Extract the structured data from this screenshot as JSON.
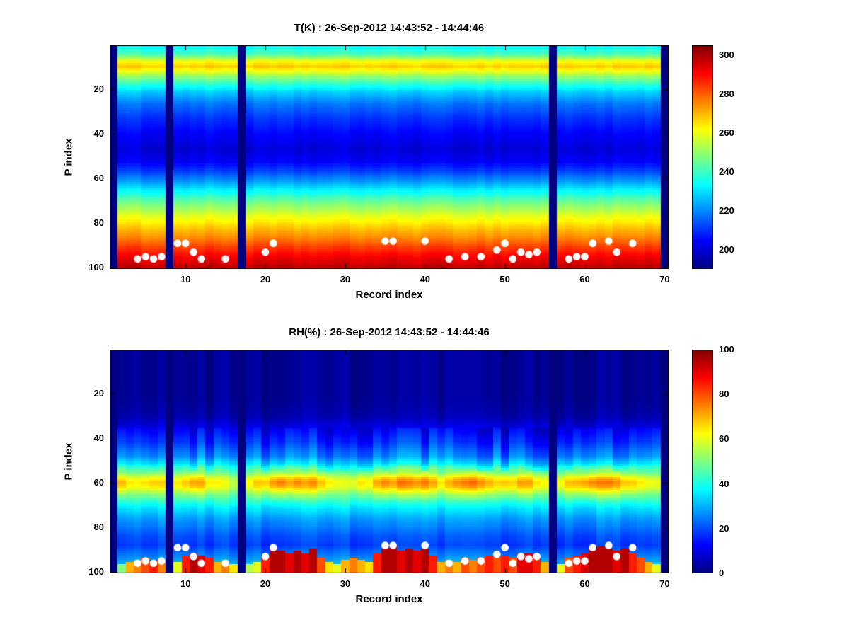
{
  "figure_bg": "#ffffff",
  "marker_color": "#ffffff",
  "chart_data": [
    {
      "type": "heatmap",
      "title": "T(K) : 26-Sep-2012 14:43:52 - 14:44:46",
      "x": {
        "label": "Record index",
        "min": 1,
        "max": 70,
        "ticks": [
          10,
          20,
          30,
          40,
          50,
          60,
          70
        ]
      },
      "y": {
        "label": "P index",
        "min": 1,
        "max": 100,
        "ticks": [
          20,
          40,
          60,
          80,
          100
        ],
        "direction": "down"
      },
      "colormap": "jet",
      "grid": false,
      "value_range": [
        190,
        305
      ],
      "colorbar_ticks": [
        200,
        220,
        240,
        260,
        280,
        300
      ],
      "profile_p_value": [
        [
          1,
          233
        ],
        [
          4,
          240
        ],
        [
          6,
          250
        ],
        [
          8,
          262
        ],
        [
          10,
          267
        ],
        [
          12,
          260
        ],
        [
          15,
          248
        ],
        [
          18,
          237
        ],
        [
          22,
          226
        ],
        [
          27,
          217
        ],
        [
          33,
          210
        ],
        [
          40,
          204
        ],
        [
          47,
          200
        ],
        [
          53,
          204
        ],
        [
          58,
          214
        ],
        [
          63,
          226
        ],
        [
          68,
          239
        ],
        [
          73,
          251
        ],
        [
          77,
          259
        ],
        [
          81,
          266
        ],
        [
          85,
          273
        ],
        [
          89,
          280
        ],
        [
          93,
          288
        ],
        [
          97,
          294
        ],
        [
          100,
          299
        ]
      ],
      "gap_records": [
        1,
        8,
        17,
        56,
        70
      ],
      "column_noise_amp": 1.6,
      "marker_color": "#ffffff",
      "markers_record_p": [
        [
          4,
          96
        ],
        [
          5,
          95
        ],
        [
          6,
          96
        ],
        [
          7,
          95
        ],
        [
          9,
          89
        ],
        [
          10,
          89
        ],
        [
          11,
          93
        ],
        [
          12,
          96
        ],
        [
          15,
          96
        ],
        [
          20,
          93
        ],
        [
          21,
          89
        ],
        [
          35,
          88
        ],
        [
          36,
          88
        ],
        [
          40,
          88
        ],
        [
          43,
          96
        ],
        [
          45,
          95
        ],
        [
          47,
          95
        ],
        [
          49,
          92
        ],
        [
          50,
          89
        ],
        [
          51,
          96
        ],
        [
          52,
          93
        ],
        [
          53,
          94
        ],
        [
          54,
          93
        ],
        [
          58,
          96
        ],
        [
          59,
          95
        ],
        [
          60,
          95
        ],
        [
          61,
          89
        ],
        [
          63,
          88
        ],
        [
          64,
          93
        ],
        [
          66,
          89
        ]
      ]
    },
    {
      "type": "heatmap",
      "title": "RH(%) : 26-Sep-2012 14:43:52 - 14:44:46",
      "x": {
        "label": "Record index",
        "min": 1,
        "max": 70,
        "ticks": [
          10,
          20,
          30,
          40,
          50,
          60,
          70
        ]
      },
      "y": {
        "label": "P index",
        "min": 1,
        "max": 100,
        "ticks": [
          20,
          40,
          60,
          80,
          100
        ],
        "direction": "down"
      },
      "colormap": "jet",
      "grid": false,
      "value_range": [
        0,
        100
      ],
      "colorbar_ticks": [
        0,
        20,
        40,
        60,
        80,
        100
      ],
      "profile_p_value": [
        [
          1,
          2
        ],
        [
          22,
          2
        ],
        [
          30,
          4
        ],
        [
          36,
          10
        ],
        [
          42,
          16
        ],
        [
          48,
          24
        ],
        [
          52,
          34
        ],
        [
          55,
          46
        ],
        [
          58,
          58
        ],
        [
          60,
          62
        ],
        [
          62,
          60
        ],
        [
          65,
          50
        ],
        [
          68,
          42
        ],
        [
          72,
          34
        ],
        [
          76,
          28
        ],
        [
          80,
          24
        ],
        [
          84,
          20
        ],
        [
          88,
          18
        ],
        [
          92,
          24
        ],
        [
          96,
          30
        ],
        [
          100,
          32
        ]
      ],
      "gap_records": [
        1,
        8,
        17,
        56,
        70
      ],
      "column_noise_amp": 2.5,
      "band_center_p": 60,
      "band_halfwidth_p": 9,
      "band_mod_by_record": [
        5,
        8,
        2,
        0,
        4,
        6,
        3,
        0,
        2,
        6,
        10,
        8,
        4,
        0,
        -3,
        -5,
        0,
        0,
        4,
        8,
        12,
        14,
        10,
        12,
        8,
        10,
        6,
        2,
        -2,
        -4,
        0,
        4,
        2,
        8,
        12,
        10,
        14,
        12,
        10,
        12,
        8,
        4,
        6,
        10,
        12,
        14,
        10,
        8,
        4,
        8,
        6,
        10,
        8,
        4,
        0,
        0,
        2,
        6,
        10,
        12,
        14,
        12,
        14,
        10,
        8,
        6,
        2,
        0,
        -2,
        -4
      ],
      "mid_noise_amp": 6,
      "mid_p_range": [
        36,
        54
      ],
      "surface_rh_by_record": [
        45,
        50,
        70,
        75,
        80,
        85,
        75,
        0,
        60,
        85,
        95,
        90,
        85,
        70,
        75,
        65,
        0,
        55,
        60,
        85,
        95,
        95,
        90,
        95,
        90,
        95,
        80,
        65,
        60,
        70,
        75,
        70,
        65,
        85,
        95,
        95,
        90,
        95,
        90,
        95,
        85,
        70,
        75,
        70,
        80,
        75,
        80,
        85,
        80,
        85,
        80,
        90,
        90,
        85,
        70,
        0,
        60,
        80,
        85,
        90,
        95,
        95,
        95,
        90,
        95,
        85,
        80,
        70,
        60,
        55
      ],
      "surface_top_p_by_record": [
        98,
        97,
        96,
        95,
        94,
        95,
        96,
        101,
        96,
        93,
        92,
        93,
        94,
        96,
        95,
        97,
        101,
        97,
        96,
        93,
        90,
        91,
        92,
        91,
        92,
        90,
        94,
        96,
        97,
        95,
        94,
        95,
        96,
        92,
        90,
        89,
        91,
        90,
        91,
        90,
        93,
        96,
        95,
        96,
        94,
        95,
        94,
        93,
        94,
        93,
        94,
        92,
        92,
        93,
        96,
        101,
        97,
        94,
        93,
        92,
        90,
        89,
        90,
        91,
        90,
        92,
        94,
        96,
        97,
        97
      ],
      "marker_color": "#ffffff",
      "markers_record_p": [
        [
          4,
          96
        ],
        [
          5,
          95
        ],
        [
          6,
          96
        ],
        [
          7,
          95
        ],
        [
          9,
          89
        ],
        [
          10,
          89
        ],
        [
          11,
          93
        ],
        [
          12,
          96
        ],
        [
          15,
          96
        ],
        [
          20,
          93
        ],
        [
          21,
          89
        ],
        [
          35,
          88
        ],
        [
          36,
          88
        ],
        [
          40,
          88
        ],
        [
          43,
          96
        ],
        [
          45,
          95
        ],
        [
          47,
          95
        ],
        [
          49,
          92
        ],
        [
          50,
          89
        ],
        [
          51,
          96
        ],
        [
          52,
          93
        ],
        [
          53,
          94
        ],
        [
          54,
          93
        ],
        [
          58,
          96
        ],
        [
          59,
          95
        ],
        [
          60,
          95
        ],
        [
          61,
          89
        ],
        [
          63,
          88
        ],
        [
          64,
          93
        ],
        [
          66,
          89
        ]
      ]
    }
  ]
}
